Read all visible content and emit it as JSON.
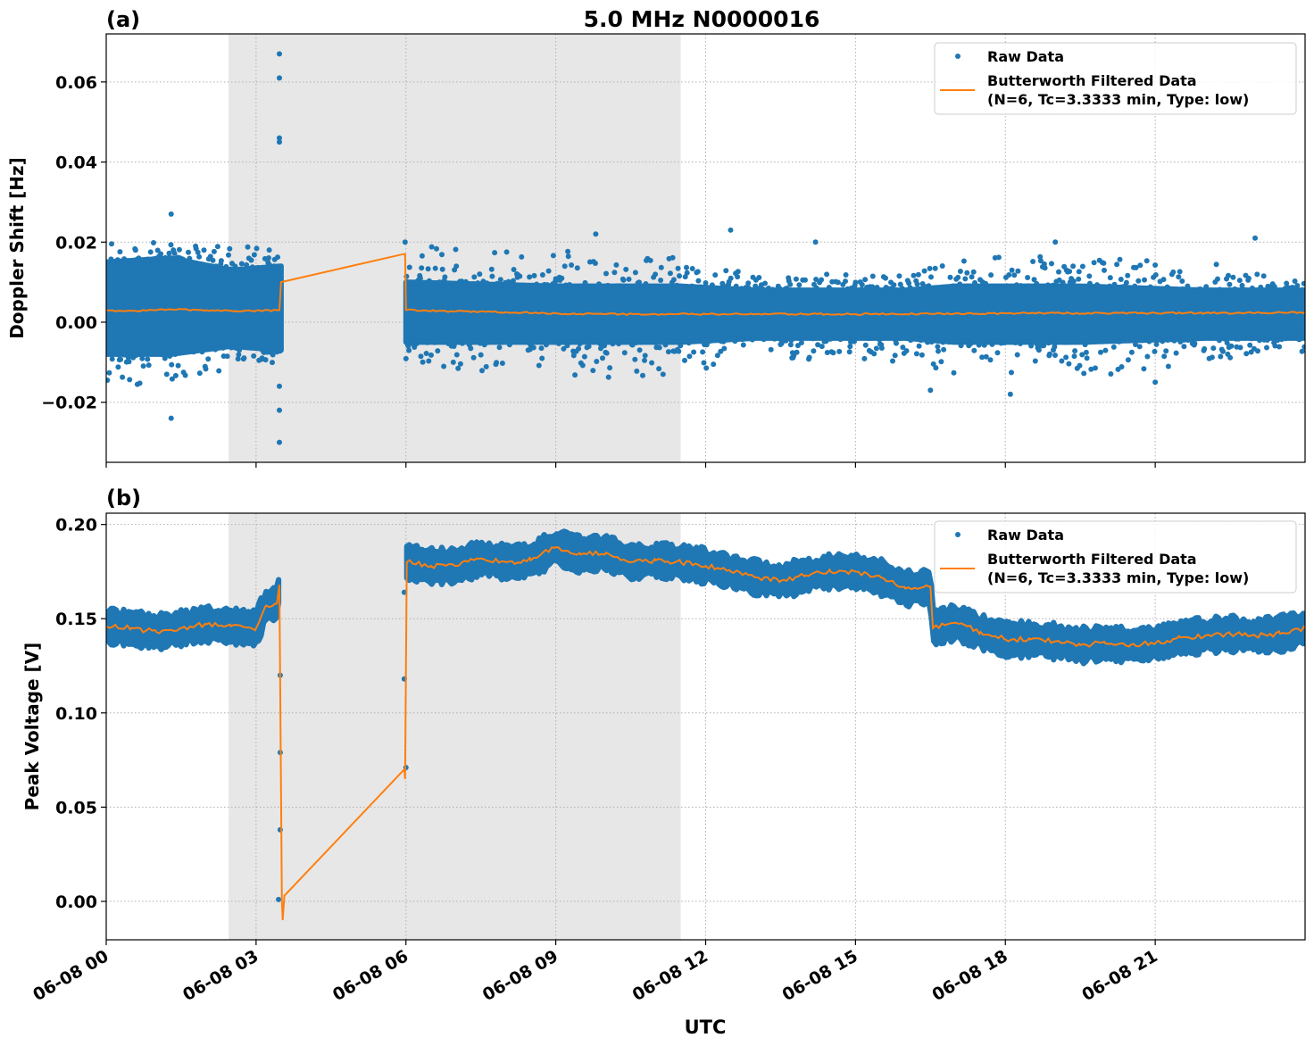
{
  "title": "5.0 MHz N0000016",
  "xlabel": "UTC",
  "colors": {
    "raw": "#1f77b4",
    "filtered": "#ff7f0e",
    "shade": "#e7e7e7"
  },
  "legend": {
    "raw_label": "Raw Data",
    "filtered_label_1": "Butterworth Filtered Data",
    "filtered_label_2": "(N=6, Tc=3.3333 min, Type: low)",
    "placement": "upper right"
  },
  "chart_data": [
    {
      "panel_label": "(a)",
      "type": "scatter+line",
      "ylabel": "Doppler Shift [Hz]",
      "ylim": [
        -0.035,
        0.072
      ],
      "yticks": [
        -0.02,
        0.0,
        0.02,
        0.04,
        0.06
      ],
      "ytick_labels": [
        "−0.02",
        "0.00",
        "0.02",
        "0.04",
        "0.06"
      ],
      "xlim": [
        "06-08 00:00",
        "06-09 00:00"
      ],
      "xticks": [
        "00:00",
        "03:00",
        "06:00",
        "09:00",
        "12:00",
        "15:00",
        "18:00",
        "21:00"
      ],
      "xtick_labels": [],
      "grid": true,
      "shaded_span": [
        "02:27",
        "11:30"
      ],
      "raw": {
        "segments": [
          [
            "00:00",
            "03:30"
          ],
          [
            "06:00",
            "24:00"
          ]
        ],
        "band": [
          {
            "t": "00:00",
            "lo": -0.008,
            "hi": 0.015,
            "fringe_lo": -0.016,
            "fringe_hi": 0.02
          },
          {
            "t": "01:18",
            "lo": -0.008,
            "hi": 0.016,
            "fringe_lo": -0.015,
            "fringe_hi": 0.021
          },
          {
            "t": "02:30",
            "lo": -0.006,
            "hi": 0.013,
            "fringe_lo": -0.012,
            "fringe_hi": 0.019
          },
          {
            "t": "03:30",
            "lo": -0.007,
            "hi": 0.014,
            "fringe_lo": -0.01,
            "fringe_hi": 0.019
          },
          {
            "t": "06:00",
            "lo": -0.005,
            "hi": 0.01,
            "fringe_lo": -0.01,
            "fringe_hi": 0.019
          },
          {
            "t": "09:00",
            "lo": -0.005,
            "hi": 0.009,
            "fringe_lo": -0.015,
            "fringe_hi": 0.018
          },
          {
            "t": "11:30",
            "lo": -0.005,
            "hi": 0.009,
            "fringe_lo": -0.013,
            "fringe_hi": 0.016
          },
          {
            "t": "13:00",
            "lo": -0.004,
            "hi": 0.008,
            "fringe_lo": -0.01,
            "fringe_hi": 0.012
          },
          {
            "t": "16:00",
            "lo": -0.004,
            "hi": 0.008,
            "fringe_lo": -0.01,
            "fringe_hi": 0.012
          },
          {
            "t": "17:00",
            "lo": -0.005,
            "hi": 0.009,
            "fringe_lo": -0.014,
            "fringe_hi": 0.016
          },
          {
            "t": "19:30",
            "lo": -0.005,
            "hi": 0.009,
            "fringe_lo": -0.014,
            "fringe_hi": 0.017
          },
          {
            "t": "22:00",
            "lo": -0.004,
            "hi": 0.008,
            "fringe_lo": -0.01,
            "fringe_hi": 0.015
          },
          {
            "t": "24:00",
            "lo": -0.004,
            "hi": 0.008,
            "fringe_lo": -0.008,
            "fringe_hi": 0.01
          }
        ],
        "outliers": [
          [
            "01:18",
            0.027
          ],
          [
            "01:18",
            -0.024
          ],
          [
            "03:28",
            0.067
          ],
          [
            "03:28",
            0.061
          ],
          [
            "03:28",
            0.046
          ],
          [
            "03:28",
            0.045
          ],
          [
            "03:28",
            -0.016
          ],
          [
            "03:28",
            -0.022
          ],
          [
            "03:28",
            -0.03
          ],
          [
            "05:59",
            0.02
          ],
          [
            "09:48",
            0.022
          ],
          [
            "12:30",
            0.023
          ],
          [
            "14:12",
            0.02
          ],
          [
            "16:30",
            -0.017
          ],
          [
            "18:06",
            -0.018
          ],
          [
            "19:00",
            0.02
          ],
          [
            "23:00",
            0.021
          ],
          [
            "21:00",
            -0.015
          ]
        ]
      },
      "filtered": {
        "t": [
          "00:00",
          "00:30",
          "01:00",
          "01:30",
          "02:00",
          "02:30",
          "03:00",
          "03:28",
          "03:30",
          "05:57",
          "05:59",
          "06:00",
          "07:00",
          "08:00",
          "09:00",
          "10:00",
          "11:00",
          "12:00",
          "13:00",
          "14:00",
          "15:00",
          "16:00",
          "17:00",
          "18:00",
          "19:00",
          "20:00",
          "21:00",
          "22:00",
          "23:00",
          "24:00"
        ],
        "y": [
          0.003,
          0.0028,
          0.003,
          0.0032,
          0.003,
          0.0028,
          0.0029,
          0.003,
          0.01,
          0.017,
          0.017,
          0.003,
          0.0027,
          0.0025,
          0.0022,
          0.002,
          0.002,
          0.002,
          0.002,
          0.002,
          0.002,
          0.002,
          0.0022,
          0.0022,
          0.0023,
          0.0022,
          0.0023,
          0.0023,
          0.0023,
          0.0025
        ]
      }
    },
    {
      "panel_label": "(b)",
      "type": "scatter+line",
      "ylabel": "Peak Voltage [V]",
      "ylim": [
        -0.0204,
        0.206
      ],
      "yticks": [
        0.0,
        0.05,
        0.1,
        0.15,
        0.2
      ],
      "ytick_labels": [
        "0.00",
        "0.05",
        "0.10",
        "0.15",
        "0.20"
      ],
      "xlim": [
        "06-08 00:00",
        "06-09 00:00"
      ],
      "xticks": [
        "00:00",
        "03:00",
        "06:00",
        "09:00",
        "12:00",
        "15:00",
        "18:00",
        "21:00"
      ],
      "xtick_labels": [
        "06-08 00",
        "06-08 03",
        "06-08 06",
        "06-08 09",
        "06-08 12",
        "06-08 15",
        "06-08 18",
        "06-08 21"
      ],
      "grid": true,
      "shaded_span": [
        "02:27",
        "11:30"
      ],
      "raw": {
        "segments": [
          [
            "00:00",
            "03:28"
          ],
          [
            "06:01",
            "24:00"
          ]
        ],
        "band_halfwidth": 0.008,
        "outliers": [
          [
            "03:29",
            0.12
          ],
          [
            "03:29",
            0.079
          ],
          [
            "03:29",
            0.038
          ],
          [
            "03:27",
            0.001
          ],
          [
            "05:58",
            0.164
          ],
          [
            "05:58",
            0.118
          ],
          [
            "06:00",
            0.071
          ]
        ]
      },
      "filtered": {
        "t": [
          "00:00",
          "00:30",
          "01:00",
          "01:30",
          "02:00",
          "02:30",
          "03:00",
          "03:12",
          "03:25",
          "03:28",
          "03:31",
          "03:32",
          "03:34",
          "05:58",
          "05:59",
          "06:01",
          "06:30",
          "07:00",
          "07:30",
          "08:00",
          "08:30",
          "09:00",
          "09:30",
          "10:00",
          "10:30",
          "11:00",
          "11:30",
          "12:00",
          "12:30",
          "13:00",
          "13:30",
          "14:00",
          "14:30",
          "15:00",
          "15:30",
          "16:00",
          "16:30",
          "16:33",
          "17:00",
          "17:30",
          "18:00",
          "18:30",
          "19:00",
          "19:30",
          "20:00",
          "20:30",
          "21:00",
          "21:30",
          "22:00",
          "22:30",
          "23:00",
          "23:30",
          "24:00"
        ],
        "y": [
          0.146,
          0.145,
          0.143,
          0.145,
          0.147,
          0.146,
          0.145,
          0.157,
          0.158,
          0.168,
          0.0,
          -0.01,
          0.003,
          0.07,
          0.065,
          0.18,
          0.178,
          0.178,
          0.182,
          0.18,
          0.181,
          0.188,
          0.184,
          0.185,
          0.18,
          0.181,
          0.18,
          0.178,
          0.175,
          0.172,
          0.17,
          0.173,
          0.175,
          0.175,
          0.172,
          0.166,
          0.167,
          0.145,
          0.148,
          0.143,
          0.139,
          0.139,
          0.138,
          0.136,
          0.137,
          0.136,
          0.137,
          0.14,
          0.141,
          0.142,
          0.141,
          0.142,
          0.145
        ]
      }
    }
  ]
}
